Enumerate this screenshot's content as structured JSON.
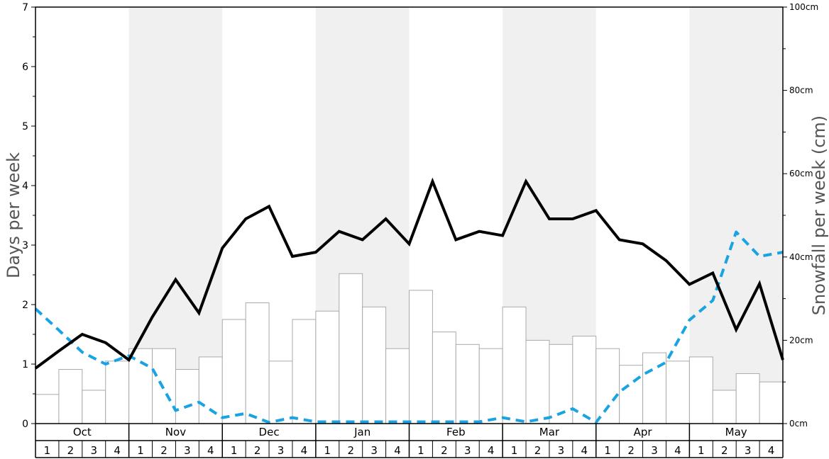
{
  "chart_data": {
    "type": "bar",
    "y_left_label": "Days per week",
    "y_right_label": "Snowfall per week (cm)",
    "y_left_range": [
      0,
      7
    ],
    "y_left_ticks": [
      "0",
      "1",
      "2",
      "3",
      "4",
      "5",
      "6",
      "7"
    ],
    "y_right_range": [
      0,
      100
    ],
    "y_right_ticks": [
      "0cm",
      "20cm",
      "40cm",
      "60cm",
      "80cm",
      "100cm"
    ],
    "months": [
      "Oct",
      "Nov",
      "Dec",
      "Jan",
      "Feb",
      "Mar",
      "Apr",
      "May"
    ],
    "weeks": [
      "1",
      "2",
      "3",
      "4"
    ],
    "colors": {
      "bars_fill": "#ffffff",
      "bars_stroke": "#aaaaaa",
      "solid_line": "#000000",
      "dashed_line": "#1aa3e3",
      "shade_band": "#f0f0f0"
    },
    "snowfall_bars_cm": [
      7,
      13,
      8,
      15,
      18,
      18,
      13,
      16,
      25,
      29,
      15,
      25,
      27,
      36,
      28,
      18,
      32,
      22,
      19,
      18,
      28,
      20,
      19,
      21,
      18,
      14,
      17,
      15,
      16,
      8,
      12,
      10
    ],
    "solid_line_days": [
      0.93,
      1.22,
      1.5,
      1.36,
      1.07,
      1.79,
      2.42,
      1.86,
      2.95,
      3.44,
      3.65,
      2.81,
      2.88,
      3.23,
      3.09,
      3.44,
      3.02,
      4.07,
      3.09,
      3.23,
      3.16,
      4.07,
      3.44,
      3.44,
      3.58,
      3.09,
      3.02,
      2.74,
      2.34,
      2.53,
      1.58,
      2.35,
      1.07
    ],
    "dashed_line_days": [
      1.93,
      1.57,
      1.2,
      1.0,
      1.14,
      0.93,
      0.22,
      0.36,
      0.1,
      0.17,
      0.02,
      0.1,
      0.03,
      0.03,
      0.03,
      0.03,
      0.03,
      0.03,
      0.03,
      0.03,
      0.1,
      0.03,
      0.1,
      0.25,
      0.02,
      0.53,
      0.82,
      1.03,
      1.74,
      2.07,
      3.22,
      2.81,
      2.88
    ]
  }
}
